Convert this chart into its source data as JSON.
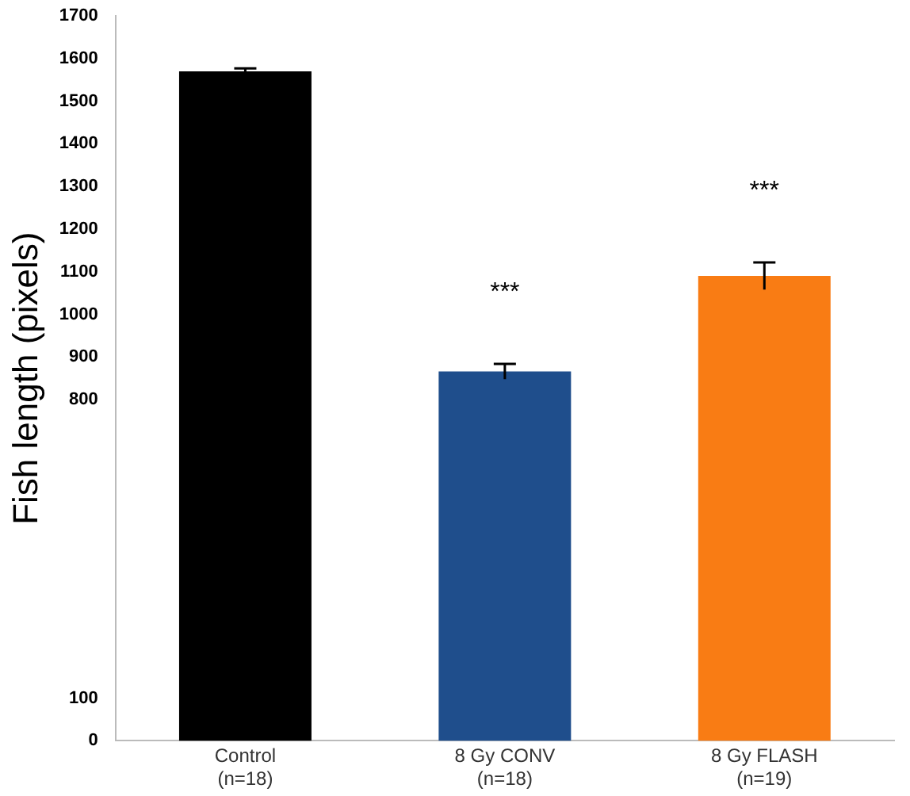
{
  "chart_data": {
    "type": "bar",
    "ylabel": "Fish length (pixels)",
    "categories": [
      "Control\n(n=18)",
      "8 Gy CONV\n(n=18)",
      "8 Gy FLASH\n(n=19)"
    ],
    "values": [
      1570,
      866,
      1090
    ],
    "colors": [
      "#000000",
      "#1f4e8c",
      "#f97c14"
    ],
    "errors": [
      7,
      18,
      32
    ],
    "ylim": [
      0,
      1700
    ],
    "yticks": [
      0,
      100,
      800,
      900,
      1000,
      1100,
      1200,
      1300,
      1400,
      1500,
      1600,
      1700
    ],
    "grid": false,
    "legend": false,
    "annotations": [
      "***",
      "***"
    ]
  }
}
